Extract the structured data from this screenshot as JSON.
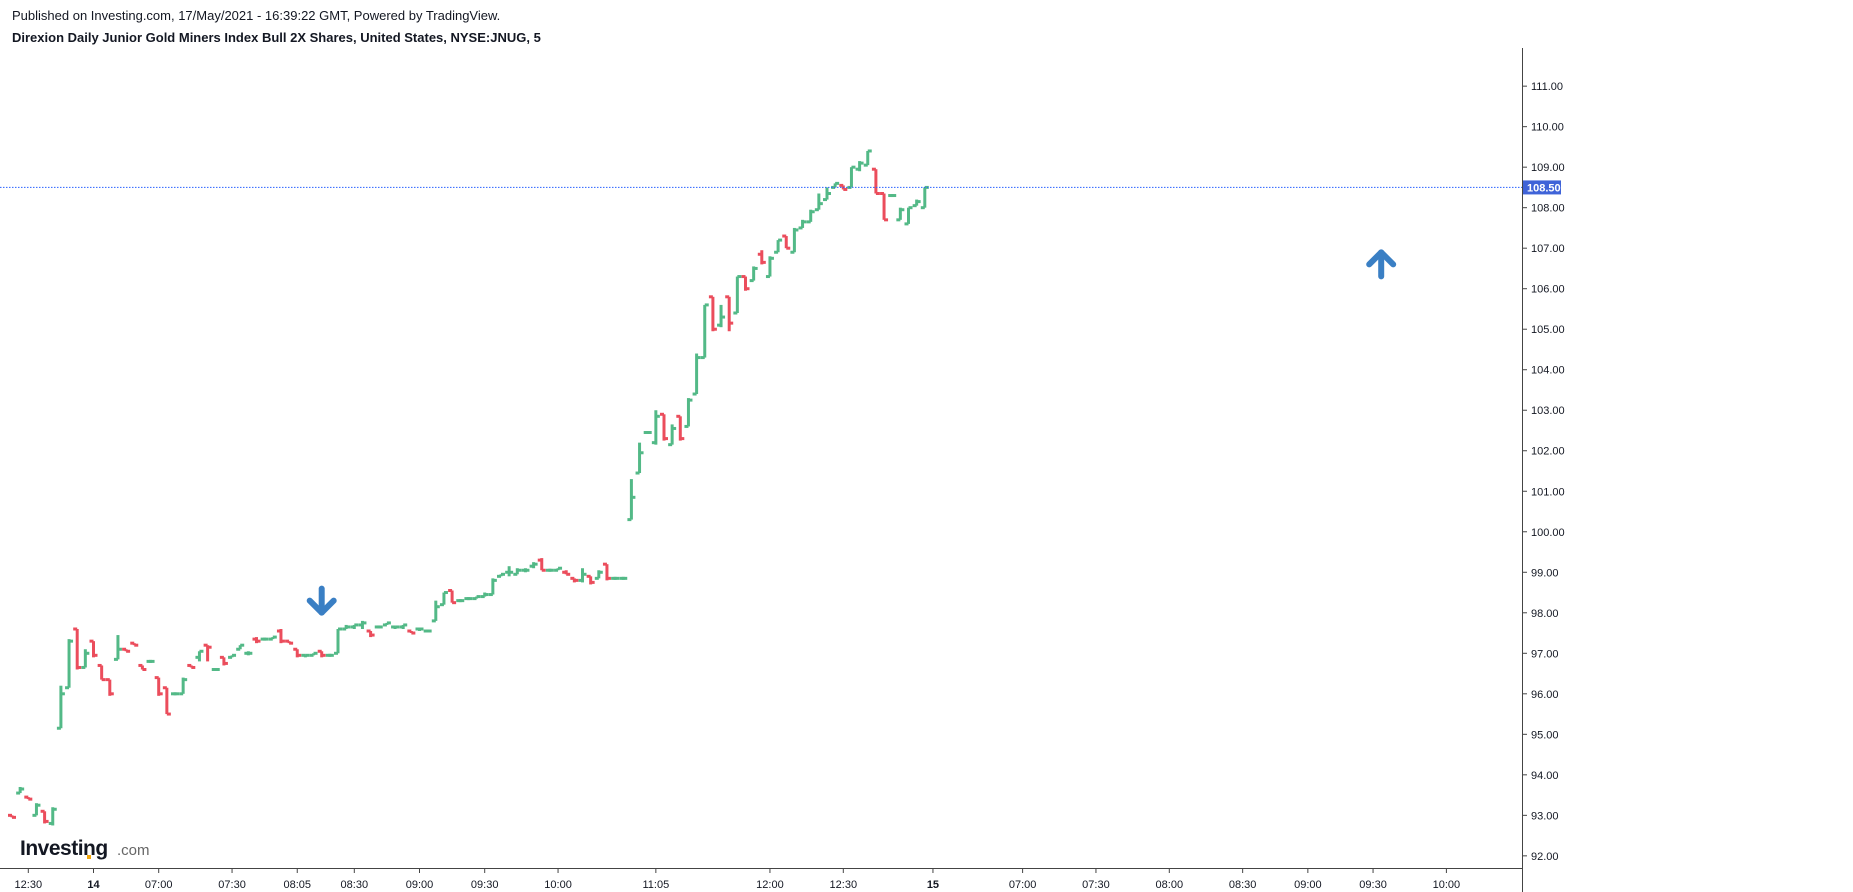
{
  "header": {
    "published": "Published on Investing.com, 17/May/2021 - 16:39:22 GMT, Powered by TradingView.",
    "title": "Direxion Daily Junior Gold Miners Index Bull 2X Shares, United States, NYSE:JNUG, 5"
  },
  "logo": {
    "main": "Investing",
    "suffix": ".com"
  },
  "colors": {
    "up": "#53b987",
    "down": "#eb4d5c",
    "last_price_line": "#2962ff",
    "arrow": "#3a7fc4",
    "last_price_bg": "#3f63d8"
  },
  "chart_data": {
    "type": "ohlc",
    "x_labels": [
      {
        "text": "12:30",
        "index": 2,
        "bold": false
      },
      {
        "text": "14",
        "index": 10,
        "bold": true
      },
      {
        "text": "07:00",
        "index": 18,
        "bold": false
      },
      {
        "text": "07:30",
        "index": 27,
        "bold": false
      },
      {
        "text": "08:05",
        "index": 35,
        "bold": false
      },
      {
        "text": "08:30",
        "index": 42,
        "bold": false
      },
      {
        "text": "09:00",
        "index": 50,
        "bold": false
      },
      {
        "text": "09:30",
        "index": 58,
        "bold": false
      },
      {
        "text": "10:00",
        "index": 67,
        "bold": false
      },
      {
        "text": "11:05",
        "index": 79,
        "bold": false
      },
      {
        "text": "12:00",
        "index": 93,
        "bold": false
      },
      {
        "text": "12:30",
        "index": 102,
        "bold": false
      },
      {
        "text": "15",
        "index": 113,
        "bold": true
      },
      {
        "text": "07:00",
        "index": 124,
        "bold": false
      },
      {
        "text": "07:30",
        "index": 133,
        "bold": false
      },
      {
        "text": "08:00",
        "index": 142,
        "bold": false
      },
      {
        "text": "08:30",
        "index": 151,
        "bold": false
      },
      {
        "text": "09:00",
        "index": 159,
        "bold": false
      },
      {
        "text": "09:30",
        "index": 167,
        "bold": false
      },
      {
        "text": "10:00",
        "index": 176,
        "bold": false
      }
    ],
    "y_ticks": [
      "111.00",
      "110.00",
      "109.00",
      "108.00",
      "107.00",
      "106.00",
      "105.00",
      "104.00",
      "103.00",
      "102.00",
      "101.00",
      "100.00",
      "99.00",
      "98.00",
      "97.00",
      "96.00",
      "95.00",
      "94.00",
      "93.00",
      "92.00"
    ],
    "ylim": [
      92.0,
      111.0
    ],
    "last_price": 108.5,
    "last_price_label": "108.50",
    "bars": [
      [
        93.0,
        93.0,
        92.95,
        92.95
      ],
      [
        93.55,
        93.7,
        93.55,
        93.65
      ],
      [
        93.45,
        93.45,
        93.4,
        93.4
      ],
      [
        93.0,
        93.3,
        93.0,
        93.25
      ],
      [
        93.1,
        93.1,
        92.8,
        92.85
      ],
      [
        92.8,
        93.2,
        92.75,
        93.15
      ],
      [
        95.15,
        96.2,
        95.15,
        96.0
      ],
      [
        96.15,
        97.35,
        96.15,
        97.3
      ],
      [
        97.6,
        97.6,
        96.6,
        96.65
      ],
      [
        96.65,
        97.1,
        96.65,
        97.0
      ],
      [
        97.3,
        97.3,
        96.9,
        96.95
      ],
      [
        96.7,
        96.7,
        96.35,
        96.35
      ],
      [
        96.35,
        96.35,
        95.95,
        96.0
      ],
      [
        96.85,
        97.45,
        96.85,
        97.1
      ],
      [
        97.1,
        97.1,
        97.05,
        97.05
      ],
      [
        97.25,
        97.25,
        97.2,
        97.2
      ],
      [
        96.7,
        96.7,
        96.6,
        96.6
      ],
      [
        96.8,
        96.8,
        96.8,
        96.8
      ],
      [
        96.4,
        96.4,
        95.95,
        96.0
      ],
      [
        96.15,
        96.15,
        95.5,
        95.5
      ],
      [
        96.0,
        96.0,
        96.0,
        96.0
      ],
      [
        96.0,
        96.4,
        96.0,
        96.35
      ],
      [
        96.7,
        96.7,
        96.65,
        96.65
      ],
      [
        96.9,
        97.05,
        96.8,
        97.05
      ],
      [
        97.2,
        97.2,
        96.8,
        97.15
      ],
      [
        96.6,
        96.6,
        96.6,
        96.6
      ],
      [
        96.9,
        96.9,
        96.7,
        96.75
      ],
      [
        96.9,
        96.95,
        96.9,
        96.95
      ],
      [
        97.1,
        97.2,
        97.1,
        97.2
      ],
      [
        97.0,
        97.05,
        96.95,
        97.0
      ],
      [
        97.35,
        97.4,
        97.25,
        97.3
      ],
      [
        97.35,
        97.35,
        97.35,
        97.35
      ],
      [
        97.35,
        97.4,
        97.35,
        97.4
      ],
      [
        97.55,
        97.6,
        97.25,
        97.3
      ],
      [
        97.3,
        97.3,
        97.25,
        97.25
      ],
      [
        97.1,
        97.1,
        96.9,
        96.95
      ],
      [
        96.95,
        96.95,
        96.9,
        96.95
      ],
      [
        96.95,
        97.0,
        96.95,
        97.0
      ],
      [
        97.05,
        97.05,
        96.9,
        96.95
      ],
      [
        96.95,
        96.95,
        96.95,
        96.95
      ],
      [
        97.0,
        97.6,
        97.0,
        97.6
      ],
      [
        97.6,
        97.7,
        97.6,
        97.65
      ],
      [
        97.65,
        97.7,
        97.6,
        97.7
      ],
      [
        97.7,
        97.8,
        97.6,
        97.75
      ],
      [
        97.55,
        97.55,
        97.4,
        97.45
      ],
      [
        97.65,
        97.65,
        97.65,
        97.65
      ],
      [
        97.7,
        97.75,
        97.7,
        97.75
      ],
      [
        97.65,
        97.65,
        97.6,
        97.65
      ],
      [
        97.65,
        97.7,
        97.6,
        97.7
      ],
      [
        97.55,
        97.55,
        97.5,
        97.5
      ],
      [
        97.6,
        97.6,
        97.55,
        97.6
      ],
      [
        97.55,
        97.55,
        97.55,
        97.55
      ],
      [
        97.8,
        98.3,
        97.8,
        98.15
      ],
      [
        98.2,
        98.5,
        98.2,
        98.5
      ],
      [
        98.55,
        98.55,
        98.25,
        98.25
      ],
      [
        98.3,
        98.3,
        98.3,
        98.3
      ],
      [
        98.35,
        98.35,
        98.35,
        98.35
      ],
      [
        98.35,
        98.4,
        98.35,
        98.4
      ],
      [
        98.4,
        98.5,
        98.4,
        98.45
      ],
      [
        98.45,
        98.85,
        98.45,
        98.8
      ],
      [
        98.9,
        98.95,
        98.9,
        98.95
      ],
      [
        99.0,
        99.15,
        98.9,
        99.0
      ],
      [
        98.95,
        99.1,
        98.95,
        99.05
      ],
      [
        99.05,
        99.1,
        99.0,
        99.05
      ],
      [
        99.15,
        99.25,
        99.1,
        99.2
      ],
      [
        99.3,
        99.35,
        99.05,
        99.05
      ],
      [
        99.05,
        99.05,
        99.05,
        99.05
      ],
      [
        99.05,
        99.1,
        99.05,
        99.1
      ],
      [
        99.0,
        99.05,
        98.95,
        98.95
      ],
      [
        98.85,
        98.85,
        98.75,
        98.8
      ],
      [
        98.8,
        99.1,
        98.75,
        98.95
      ],
      [
        98.9,
        98.9,
        98.7,
        98.75
      ],
      [
        98.85,
        99.05,
        98.85,
        99.0
      ],
      [
        99.2,
        99.2,
        98.8,
        98.85
      ],
      [
        98.85,
        98.85,
        98.85,
        98.85
      ],
      [
        98.85,
        98.85,
        98.85,
        98.85
      ],
      [
        100.3,
        101.3,
        100.3,
        100.85
      ],
      [
        101.45,
        102.2,
        101.45,
        101.95
      ],
      [
        102.45,
        102.45,
        102.45,
        102.45
      ],
      [
        102.2,
        103.0,
        102.15,
        102.85
      ],
      [
        102.9,
        102.9,
        102.25,
        102.3
      ],
      [
        102.15,
        102.65,
        102.15,
        102.55
      ],
      [
        102.85,
        102.85,
        102.25,
        102.3
      ],
      [
        102.6,
        103.3,
        102.6,
        103.25
      ],
      [
        103.4,
        104.4,
        103.4,
        104.3
      ],
      [
        104.3,
        105.6,
        104.3,
        105.6
      ],
      [
        105.8,
        105.8,
        104.95,
        105.0
      ],
      [
        105.1,
        105.6,
        105.05,
        105.3
      ],
      [
        105.8,
        105.8,
        104.95,
        105.15
      ],
      [
        105.4,
        106.3,
        105.4,
        106.3
      ],
      [
        106.3,
        106.3,
        105.95,
        106.0
      ],
      [
        106.2,
        106.55,
        106.2,
        106.5
      ],
      [
        106.85,
        106.95,
        106.6,
        106.65
      ],
      [
        106.3,
        106.8,
        106.3,
        106.75
      ],
      [
        106.9,
        107.2,
        106.9,
        107.2
      ],
      [
        107.3,
        107.3,
        107.0,
        107.0
      ],
      [
        106.9,
        107.5,
        106.9,
        107.45
      ],
      [
        107.5,
        107.7,
        107.5,
        107.65
      ],
      [
        107.65,
        107.95,
        107.65,
        107.9
      ],
      [
        107.95,
        108.35,
        107.95,
        108.1
      ],
      [
        108.2,
        108.5,
        108.2,
        108.35
      ],
      [
        108.5,
        108.6,
        108.5,
        108.6
      ],
      [
        108.55,
        108.55,
        108.45,
        108.45
      ],
      [
        108.5,
        109.0,
        108.5,
        109.0
      ],
      [
        108.95,
        109.15,
        108.9,
        109.1
      ],
      [
        109.05,
        109.4,
        109.05,
        109.4
      ],
      [
        108.95,
        108.95,
        108.35,
        108.35
      ],
      [
        108.35,
        108.35,
        107.7,
        107.7
      ],
      [
        108.3,
        108.3,
        108.3,
        108.3
      ],
      [
        107.7,
        108.0,
        107.7,
        107.95
      ],
      [
        107.6,
        108.0,
        107.6,
        108.0
      ],
      [
        108.05,
        108.2,
        108.05,
        108.15
      ],
      [
        108.0,
        108.5,
        108.0,
        108.5
      ]
    ],
    "arrows": [
      {
        "direction": "down",
        "index": 38,
        "price": 98.25
      },
      {
        "direction": "up",
        "index": 168,
        "price": 106.65
      }
    ]
  }
}
